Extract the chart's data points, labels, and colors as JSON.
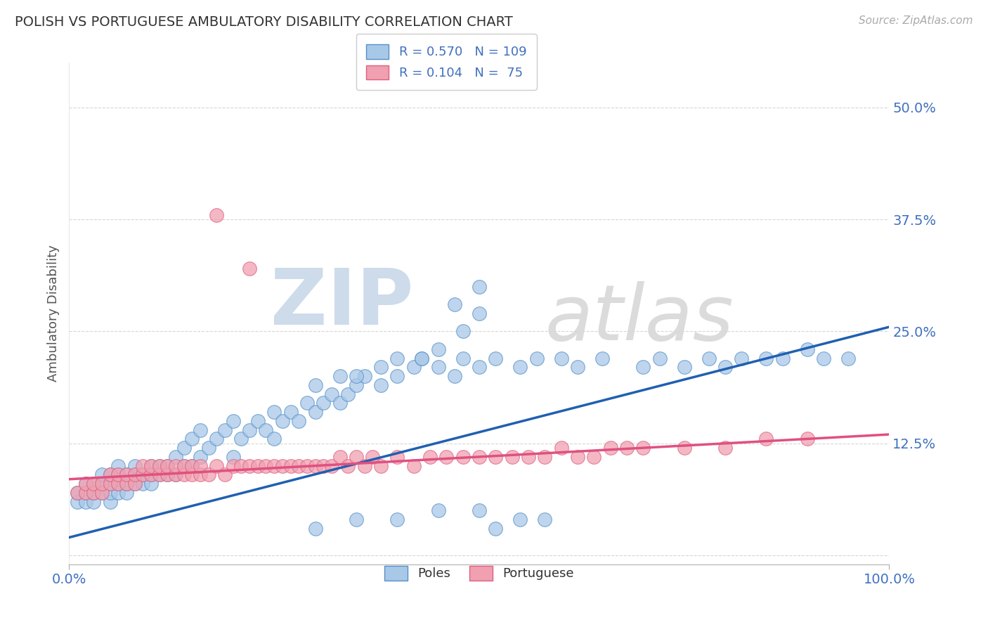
{
  "title": "POLISH VS PORTUGUESE AMBULATORY DISABILITY CORRELATION CHART",
  "source": "Source: ZipAtlas.com",
  "ylabel": "Ambulatory Disability",
  "xlim": [
    0,
    1
  ],
  "ylim": [
    -0.01,
    0.55
  ],
  "yticks": [
    0.0,
    0.125,
    0.25,
    0.375,
    0.5
  ],
  "ytick_labels": [
    "",
    "12.5%",
    "25.0%",
    "37.5%",
    "50.0%"
  ],
  "title_color": "#333333",
  "axis_label_color": "#555555",
  "blue_fill": "#a8c8e8",
  "blue_edge": "#5590c8",
  "pink_fill": "#f0a0b0",
  "pink_edge": "#e06080",
  "blue_line": "#2060b0",
  "pink_line": "#e05080",
  "legend_text_color": "#4070c0",
  "tick_color": "#4070c0",
  "grid_color": "#cccccc",
  "watermark_zip_color": "#c8d8e8",
  "watermark_atlas_color": "#d8d8d8",
  "poles_x": [
    0.01,
    0.01,
    0.02,
    0.02,
    0.02,
    0.03,
    0.03,
    0.03,
    0.04,
    0.04,
    0.04,
    0.05,
    0.05,
    0.05,
    0.05,
    0.06,
    0.06,
    0.06,
    0.06,
    0.07,
    0.07,
    0.07,
    0.08,
    0.08,
    0.08,
    0.09,
    0.09,
    0.1,
    0.1,
    0.1,
    0.11,
    0.11,
    0.12,
    0.12,
    0.13,
    0.13,
    0.14,
    0.14,
    0.15,
    0.15,
    0.16,
    0.16,
    0.17,
    0.18,
    0.19,
    0.2,
    0.2,
    0.21,
    0.22,
    0.23,
    0.24,
    0.25,
    0.25,
    0.26,
    0.27,
    0.28,
    0.29,
    0.3,
    0.31,
    0.32,
    0.33,
    0.34,
    0.35,
    0.36,
    0.38,
    0.4,
    0.42,
    0.43,
    0.45,
    0.47,
    0.48,
    0.5,
    0.52,
    0.55,
    0.57,
    0.6,
    0.62,
    0.65,
    0.7,
    0.72,
    0.75,
    0.78,
    0.8,
    0.82,
    0.85,
    0.87,
    0.9,
    0.92,
    0.95,
    0.3,
    0.35,
    0.4,
    0.45,
    0.5,
    0.52,
    0.55,
    0.58,
    0.47,
    0.5,
    0.5,
    0.48,
    0.45,
    0.43,
    0.4,
    0.38,
    0.35,
    0.33,
    0.3
  ],
  "poles_y": [
    0.06,
    0.07,
    0.06,
    0.07,
    0.08,
    0.06,
    0.07,
    0.08,
    0.07,
    0.08,
    0.09,
    0.06,
    0.07,
    0.08,
    0.09,
    0.07,
    0.08,
    0.09,
    0.1,
    0.07,
    0.08,
    0.09,
    0.08,
    0.09,
    0.1,
    0.08,
    0.09,
    0.08,
    0.09,
    0.1,
    0.09,
    0.1,
    0.09,
    0.1,
    0.09,
    0.11,
    0.1,
    0.12,
    0.1,
    0.13,
    0.11,
    0.14,
    0.12,
    0.13,
    0.14,
    0.11,
    0.15,
    0.13,
    0.14,
    0.15,
    0.14,
    0.13,
    0.16,
    0.15,
    0.16,
    0.15,
    0.17,
    0.16,
    0.17,
    0.18,
    0.17,
    0.18,
    0.19,
    0.2,
    0.19,
    0.2,
    0.21,
    0.22,
    0.21,
    0.2,
    0.22,
    0.21,
    0.22,
    0.21,
    0.22,
    0.22,
    0.21,
    0.22,
    0.21,
    0.22,
    0.21,
    0.22,
    0.21,
    0.22,
    0.22,
    0.22,
    0.23,
    0.22,
    0.22,
    0.03,
    0.04,
    0.04,
    0.05,
    0.05,
    0.03,
    0.04,
    0.04,
    0.28,
    0.3,
    0.27,
    0.25,
    0.23,
    0.22,
    0.22,
    0.21,
    0.2,
    0.2,
    0.19
  ],
  "portuguese_x": [
    0.01,
    0.02,
    0.02,
    0.03,
    0.03,
    0.04,
    0.04,
    0.05,
    0.05,
    0.06,
    0.06,
    0.07,
    0.07,
    0.08,
    0.08,
    0.09,
    0.09,
    0.1,
    0.1,
    0.11,
    0.11,
    0.12,
    0.12,
    0.13,
    0.13,
    0.14,
    0.14,
    0.15,
    0.15,
    0.16,
    0.16,
    0.17,
    0.18,
    0.19,
    0.2,
    0.21,
    0.22,
    0.23,
    0.24,
    0.25,
    0.26,
    0.27,
    0.28,
    0.29,
    0.3,
    0.31,
    0.32,
    0.33,
    0.34,
    0.35,
    0.36,
    0.37,
    0.38,
    0.4,
    0.42,
    0.44,
    0.46,
    0.48,
    0.5,
    0.52,
    0.54,
    0.56,
    0.58,
    0.6,
    0.62,
    0.64,
    0.66,
    0.68,
    0.7,
    0.75,
    0.8,
    0.85,
    0.9,
    0.18,
    0.22
  ],
  "portuguese_y": [
    0.07,
    0.07,
    0.08,
    0.07,
    0.08,
    0.07,
    0.08,
    0.08,
    0.09,
    0.08,
    0.09,
    0.08,
    0.09,
    0.08,
    0.09,
    0.09,
    0.1,
    0.09,
    0.1,
    0.09,
    0.1,
    0.09,
    0.1,
    0.09,
    0.1,
    0.09,
    0.1,
    0.09,
    0.1,
    0.09,
    0.1,
    0.09,
    0.1,
    0.09,
    0.1,
    0.1,
    0.1,
    0.1,
    0.1,
    0.1,
    0.1,
    0.1,
    0.1,
    0.1,
    0.1,
    0.1,
    0.1,
    0.11,
    0.1,
    0.11,
    0.1,
    0.11,
    0.1,
    0.11,
    0.1,
    0.11,
    0.11,
    0.11,
    0.11,
    0.11,
    0.11,
    0.11,
    0.11,
    0.12,
    0.11,
    0.11,
    0.12,
    0.12,
    0.12,
    0.12,
    0.12,
    0.13,
    0.13,
    0.38,
    0.32
  ],
  "blue_trendline_x": [
    0.0,
    1.0
  ],
  "blue_trendline_y": [
    0.02,
    0.255
  ],
  "pink_trendline_x": [
    0.0,
    1.0
  ],
  "pink_trendline_y": [
    0.085,
    0.135
  ]
}
